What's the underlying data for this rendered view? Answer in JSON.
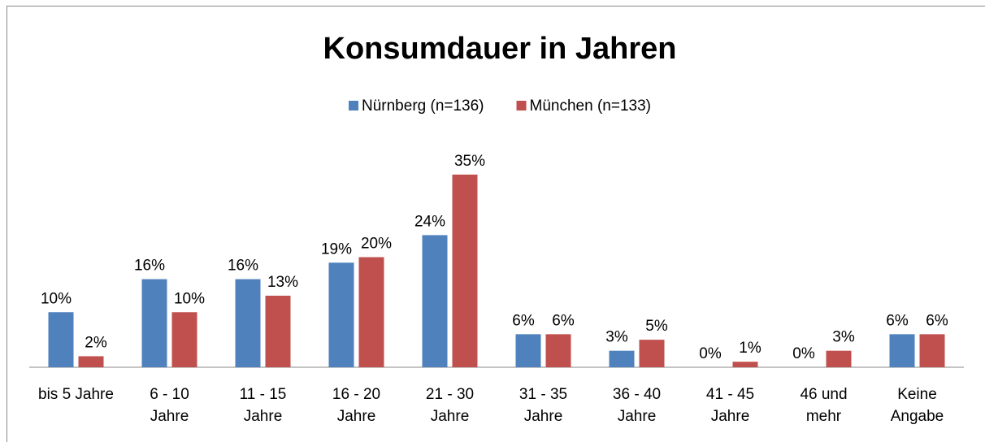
{
  "chart_data": {
    "type": "bar",
    "title": "Konsumdauer in Jahren",
    "categories": [
      "bis 5 Jahre",
      "6 - 10 Jahre",
      "11 - 15 Jahre",
      "16 - 20 Jahre",
      "21 - 30 Jahre",
      "31 - 35 Jahre",
      "36 - 40 Jahre",
      "41 - 45 Jahre",
      "46 und mehr",
      "Keine Angabe"
    ],
    "series": [
      {
        "name": "Nürnberg (n=136)",
        "color": "#4f81bd",
        "values": [
          10,
          16,
          16,
          19,
          24,
          6,
          3,
          0,
          0,
          6
        ],
        "value_labels": [
          "10%",
          "16%",
          "16%",
          "19%",
          "24%",
          "6%",
          "3%",
          "0%",
          "0%",
          "6%"
        ]
      },
      {
        "name": "München (n=133)",
        "color": "#c0504d",
        "values": [
          2,
          10,
          13,
          20,
          35,
          6,
          5,
          1,
          3,
          6
        ],
        "value_labels": [
          "2%",
          "10%",
          "13%",
          "20%",
          "35%",
          "6%",
          "5%",
          "1%",
          "3%",
          "6%"
        ]
      }
    ],
    "ylim": [
      0,
      40
    ],
    "legend": "top"
  }
}
